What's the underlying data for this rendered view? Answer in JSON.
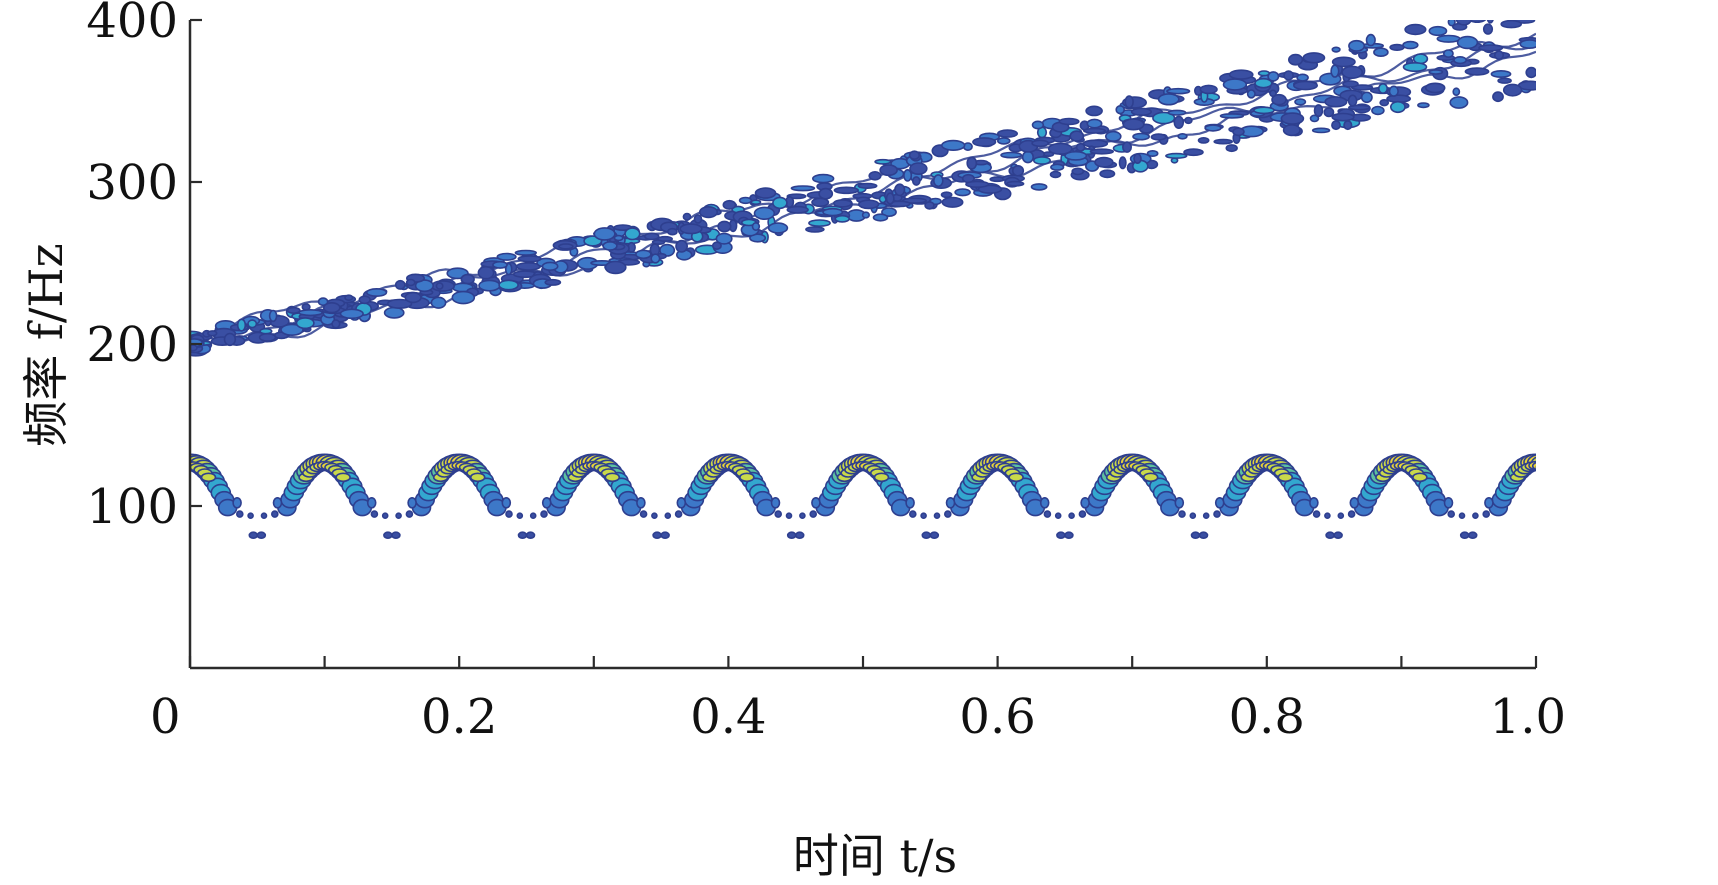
{
  "chart_data": {
    "type": "scatter",
    "title": "",
    "xlabel": "时间 t/s",
    "ylabel": "频率 f/Hz",
    "xlim": [
      0,
      1.0
    ],
    "ylim": [
      0,
      400
    ],
    "x_ticks": [
      "0",
      "0.2",
      "0.4",
      "0.6",
      "0.8",
      "1.0"
    ],
    "y_ticks": [
      "100",
      "200",
      "300",
      "400"
    ],
    "grid": false,
    "legend": "none",
    "colormap": [
      "#3a4fa3",
      "#3d78c8",
      "#33a7cf",
      "#5cc0a0",
      "#c9d94a",
      "#e8d33a"
    ],
    "series": [
      {
        "component": "linear chirp",
        "frequency_start_hz": 200,
        "frequency_end_hz": 385,
        "t_start": 0,
        "t_end": 1.0
      },
      {
        "component": "periodic arcs",
        "period_s": 0.1,
        "peak_times_s": [
          0.0,
          0.1,
          0.2,
          0.3,
          0.4,
          0.5,
          0.6,
          0.7,
          0.8,
          0.9,
          1.0
        ],
        "peak_frequency_hz": 127,
        "lowest_frequency_hz": 82
      }
    ]
  }
}
